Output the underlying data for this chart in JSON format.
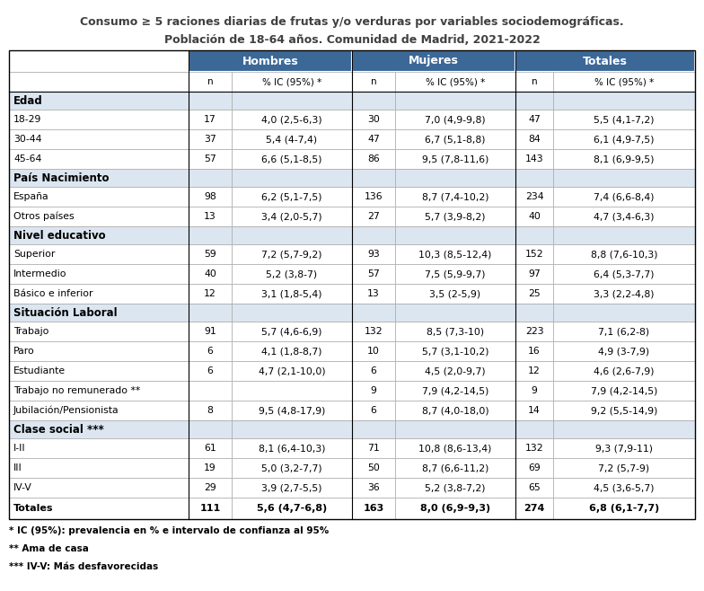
{
  "title_line1": "Consumo ≥ 5 raciones diarias de frutas y/o verduras por variables sociodemográficas.",
  "title_line2": "Población de 18-64 años. Comunidad de Madrid, 2021-2022",
  "header_bg": "#3c6898",
  "header_text": "#ffffff",
  "section_bg": "#dce6f1",
  "sections": [
    {
      "name": "Edad",
      "rows": [
        [
          "18-29",
          "17",
          "4,0 (2,5-6,3)",
          "30",
          "7,0 (4,9-9,8)",
          "47",
          "5,5 (4,1-7,2)"
        ],
        [
          "30-44",
          "37",
          "5,4 (4-7,4)",
          "47",
          "6,7 (5,1-8,8)",
          "84",
          "6,1 (4,9-7,5)"
        ],
        [
          "45-64",
          "57",
          "6,6 (5,1-8,5)",
          "86",
          "9,5 (7,8-11,6)",
          "143",
          "8,1 (6,9-9,5)"
        ]
      ]
    },
    {
      "name": "País Nacimiento",
      "rows": [
        [
          "España",
          "98",
          "6,2 (5,1-7,5)",
          "136",
          "8,7 (7,4-10,2)",
          "234",
          "7,4 (6,6-8,4)"
        ],
        [
          "Otros países",
          "13",
          "3,4 (2,0-5,7)",
          "27",
          "5,7 (3,9-8,2)",
          "40",
          "4,7 (3,4-6,3)"
        ]
      ]
    },
    {
      "name": "Nivel educativo",
      "rows": [
        [
          "Superior",
          "59",
          "7,2 (5,7-9,2)",
          "93",
          "10,3 (8,5-12,4)",
          "152",
          "8,8 (7,6-10,3)"
        ],
        [
          "Intermedio",
          "40",
          "5,2 (3,8-7)",
          "57",
          "7,5 (5,9-9,7)",
          "97",
          "6,4 (5,3-7,7)"
        ],
        [
          "Básico e inferior",
          "12",
          "3,1 (1,8-5,4)",
          "13",
          "3,5 (2-5,9)",
          "25",
          "3,3 (2,2-4,8)"
        ]
      ]
    },
    {
      "name": "Situación Laboral",
      "rows": [
        [
          "Trabajo",
          "91",
          "5,7 (4,6-6,9)",
          "132",
          "8,5 (7,3-10)",
          "223",
          "7,1 (6,2-8)"
        ],
        [
          "Paro",
          "6",
          "4,1 (1,8-8,7)",
          "10",
          "5,7 (3,1-10,2)",
          "16",
          "4,9 (3-7,9)"
        ],
        [
          "Estudiante",
          "6",
          "4,7 (2,1-10,0)",
          "6",
          "4,5 (2,0-9,7)",
          "12",
          "4,6 (2,6-7,9)"
        ],
        [
          "Trabajo no remunerado **",
          "",
          "",
          "9",
          "7,9 (4,2-14,5)",
          "9",
          "7,9 (4,2-14,5)"
        ],
        [
          "Jubilación/Pensionista",
          "8",
          "9,5 (4,8-17,9)",
          "6",
          "8,7 (4,0-18,0)",
          "14",
          "9,2 (5,5-14,9)"
        ]
      ]
    },
    {
      "name": "Clase social ***",
      "rows": [
        [
          "I-II",
          "61",
          "8,1 (6,4-10,3)",
          "71",
          "10,8 (8,6-13,4)",
          "132",
          "9,3 (7,9-11)"
        ],
        [
          "III",
          "19",
          "5,0 (3,2-7,7)",
          "50",
          "8,7 (6,6-11,2)",
          "69",
          "7,2 (5,7-9)"
        ],
        [
          "IV-V",
          "29",
          "3,9 (2,7-5,5)",
          "36",
          "5,2 (3,8-7,2)",
          "65",
          "4,5 (3,6-5,7)"
        ]
      ]
    }
  ],
  "totals_row": [
    "Totales",
    "111",
    "5,6 (4,7-6,8)",
    "163",
    "8,0 (6,9-9,3)",
    "274",
    "6,8 (6,1-7,7)"
  ],
  "footnotes": [
    "* IC (95%): prevalencia en % e intervalo de confianza al 95%",
    "** Ama de casa",
    "*** IV-V: Más desfavorecidas"
  ]
}
